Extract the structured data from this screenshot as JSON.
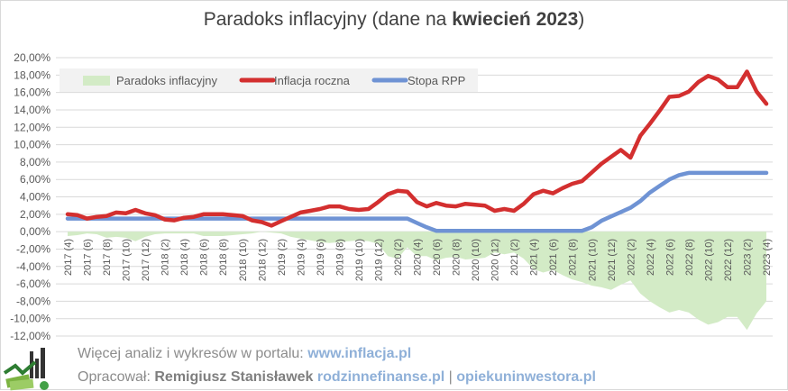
{
  "title": {
    "prefix": "Paradoks inflacyjny (dane na ",
    "bold": "kwiecień 2023",
    "suffix": ")"
  },
  "colors": {
    "paradox_fill": "#d3ebc6",
    "inflation": "#d32f2f",
    "rate": "#6f93d4",
    "grid": "#d9d9d9",
    "text": "#595959"
  },
  "chart_data": {
    "type": "line",
    "ylim": [
      -0.12,
      0.2
    ],
    "yticks": [
      -0.12,
      -0.1,
      -0.08,
      -0.06,
      -0.04,
      -0.02,
      0,
      0.02,
      0.04,
      0.06,
      0.08,
      0.1,
      0.12,
      0.14,
      0.16,
      0.18,
      0.2
    ],
    "ytick_labels": [
      "-12,00%",
      "-10,00%",
      "-8,00%",
      "-6,00%",
      "-4,00%",
      "-2,00%",
      "0,00%",
      "2,00%",
      "4,00%",
      "6,00%",
      "8,00%",
      "10,00%",
      "12,00%",
      "14,00%",
      "16,00%",
      "18,00%",
      "20,00%"
    ],
    "x": [
      "2017 (4)",
      "2017 (5)",
      "2017 (6)",
      "2017 (7)",
      "2017 (8)",
      "2017 (9)",
      "2017 (10)",
      "2017 (11)",
      "2017 (12)",
      "2018 (1)",
      "2018 (2)",
      "2018 (3)",
      "2018 (4)",
      "2018 (5)",
      "2018 (6)",
      "2018 (7)",
      "2018 (8)",
      "2018 (9)",
      "2018 (10)",
      "2018 (11)",
      "2018 (12)",
      "2019 (1)",
      "2019 (2)",
      "2019 (3)",
      "2019 (4)",
      "2019 (5)",
      "2019 (6)",
      "2019 (7)",
      "2019 (8)",
      "2019 (9)",
      "2019 (10)",
      "2019 (11)",
      "2019 (12)",
      "2020 (1)",
      "2020 (2)",
      "2020 (3)",
      "2020 (4)",
      "2020 (5)",
      "2020 (6)",
      "2020 (7)",
      "2020 (8)",
      "2020 (9)",
      "2020 (10)",
      "2020 (11)",
      "2020 (12)",
      "2021 (1)",
      "2021 (2)",
      "2021 (3)",
      "2021 (4)",
      "2021 (5)",
      "2021 (6)",
      "2021 (7)",
      "2021 (8)",
      "2021 (9)",
      "2021 (10)",
      "2021 (11)",
      "2021 (12)",
      "2022 (1)",
      "2022 (2)",
      "2022 (3)",
      "2022 (4)",
      "2022 (5)",
      "2022 (6)",
      "2022 (7)",
      "2022 (8)",
      "2022 (9)",
      "2022 (10)",
      "2022 (11)",
      "2022 (12)",
      "2023 (1)",
      "2023 (2)",
      "2023 (3)",
      "2023 (4)"
    ],
    "xtick_labels_shown": [
      "2017 (4)",
      "2017 (6)",
      "2017 (8)",
      "2017 (10)",
      "2017 (12)",
      "2018 (2)",
      "2018 (4)",
      "2018 (6)",
      "2018 (8)",
      "2018 (10)",
      "2018 (12)",
      "2019 (2)",
      "2019 (4)",
      "2019 (6)",
      "2019 (8)",
      "2019 (10)",
      "2019 (12)",
      "2020 (2)",
      "2020 (4)",
      "2020 (6)",
      "2020 (8)",
      "2020 (10)",
      "2020 (12)",
      "2021 (2)",
      "2021 (4)",
      "2021 (6)",
      "2021 (8)",
      "2021 (10)",
      "2021 (12)",
      "2022 (2)",
      "2022 (4)",
      "2022 (6)",
      "2022 (8)",
      "2022 (10)",
      "2022 (12)",
      "2023 (2)",
      "2023 (4)"
    ],
    "series": [
      {
        "name": "Paradoks inflacyjny",
        "type": "area",
        "values": [
          -0.005,
          -0.004,
          -0.002,
          -0.003,
          -0.007,
          -0.006,
          -0.007,
          -0.011,
          -0.006,
          -0.003,
          -0.002,
          -0.002,
          -0.002,
          -0.002,
          -0.005,
          -0.005,
          -0.005,
          -0.004,
          -0.003,
          -0.002,
          0,
          -0.001,
          -0.002,
          -0.006,
          -0.008,
          -0.01,
          -0.012,
          -0.013,
          -0.012,
          -0.011,
          -0.01,
          -0.011,
          -0.014,
          -0.028,
          -0.031,
          -0.018,
          -0.028,
          -0.028,
          -0.033,
          -0.03,
          -0.029,
          -0.032,
          -0.031,
          -0.03,
          -0.024,
          -0.026,
          -0.024,
          -0.031,
          -0.043,
          -0.047,
          -0.044,
          -0.05,
          -0.055,
          -0.058,
          -0.062,
          -0.064,
          -0.067,
          -0.061,
          -0.056,
          -0.071,
          -0.08,
          -0.087,
          -0.093,
          -0.09,
          -0.093,
          -0.101,
          -0.107,
          -0.104,
          -0.098,
          -0.098,
          -0.113,
          -0.094,
          -0.08
        ]
      },
      {
        "name": "Inflacja roczna",
        "type": "line",
        "values": [
          0.02,
          0.019,
          0.015,
          0.017,
          0.018,
          0.022,
          0.021,
          0.025,
          0.021,
          0.019,
          0.014,
          0.013,
          0.016,
          0.017,
          0.02,
          0.02,
          0.02,
          0.019,
          0.018,
          0.013,
          0.011,
          0.007,
          0.012,
          0.017,
          0.022,
          0.024,
          0.026,
          0.029,
          0.029,
          0.026,
          0.025,
          0.026,
          0.034,
          0.043,
          0.047,
          0.046,
          0.034,
          0.029,
          0.033,
          0.03,
          0.029,
          0.032,
          0.031,
          0.03,
          0.024,
          0.026,
          0.024,
          0.032,
          0.043,
          0.047,
          0.044,
          0.05,
          0.055,
          0.058,
          0.068,
          0.078,
          0.086,
          0.094,
          0.085,
          0.11,
          0.124,
          0.139,
          0.155,
          0.156,
          0.161,
          0.172,
          0.179,
          0.175,
          0.166,
          0.166,
          0.184,
          0.161,
          0.147
        ]
      },
      {
        "name": "Stopa RPP",
        "type": "line",
        "values": [
          0.015,
          0.015,
          0.015,
          0.015,
          0.015,
          0.015,
          0.015,
          0.015,
          0.015,
          0.015,
          0.015,
          0.015,
          0.015,
          0.015,
          0.015,
          0.015,
          0.015,
          0.015,
          0.015,
          0.015,
          0.015,
          0.015,
          0.015,
          0.015,
          0.015,
          0.015,
          0.015,
          0.015,
          0.015,
          0.015,
          0.015,
          0.015,
          0.015,
          0.015,
          0.015,
          0.015,
          0.01,
          0.005,
          0.001,
          0.001,
          0.001,
          0.001,
          0.001,
          0.001,
          0.001,
          0.001,
          0.001,
          0.001,
          0.001,
          0.001,
          0.001,
          0.001,
          0.001,
          0.001,
          0.005,
          0.0125,
          0.0175,
          0.0225,
          0.0275,
          0.035,
          0.045,
          0.0525,
          0.06,
          0.065,
          0.0675,
          0.0675,
          0.0675,
          0.0675,
          0.0675,
          0.0675,
          0.0675,
          0.0675,
          0.0675
        ]
      }
    ]
  },
  "footer": {
    "line1_text": "Więcej analiz i wykresów w portalu: ",
    "line1_link": "www.inflacja.pl",
    "line2_text": "Opracował: ",
    "line2_author": "Remigiusz Stanisławek",
    "line2_site1": "rodzinnefinanse.pl",
    "line2_sep": " | ",
    "line2_site2": "opiekuninwestora.pl"
  },
  "logo_icon": "money-chart-logo"
}
